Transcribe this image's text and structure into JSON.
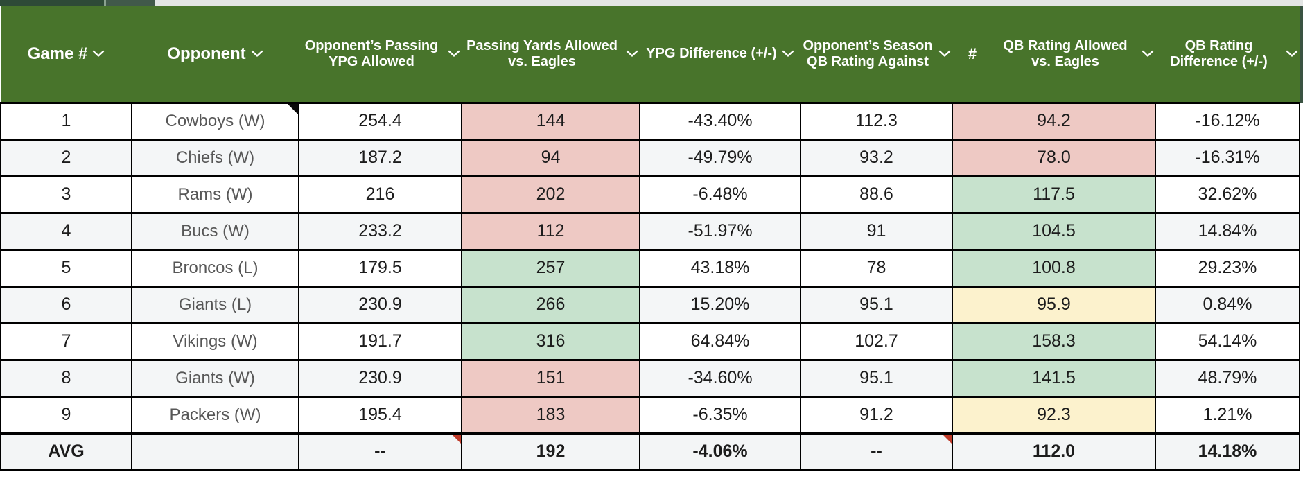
{
  "colors": {
    "header_bg": "#48742b",
    "header_text": "#ffffff",
    "edge_bar": "#3a5342",
    "strip_bg": "#e3e5e4",
    "strip_seg1": "#2e4a37",
    "strip_seg2": "#41594a",
    "strip_divider": "#8aa18f",
    "negative_cell": "#eec9c4",
    "positive_cell": "#c7e2cd",
    "neutral_cell": "#fcf2cd",
    "alt_row": "#f4f6f7",
    "avg_row": "#f3f5f6",
    "opponent_text": "#575757",
    "grid_border": "#000000",
    "flag_red": "#c03b2a",
    "flag_black": "#0a0a0a"
  },
  "columns": [
    {
      "id": "game-number",
      "label": "Game #",
      "chevron": true
    },
    {
      "id": "opponent",
      "label": "Opponent",
      "chevron": true
    },
    {
      "id": "opp-passing-ypg",
      "label": "Opponent’s Passing YPG Allowed",
      "chevron": true
    },
    {
      "id": "passing-yards-vs-eagles",
      "label": "Passing Yards Allowed vs. Eagles",
      "chevron": true
    },
    {
      "id": "ypg-difference",
      "label": "YPG Difference (+/-)",
      "chevron": true
    },
    {
      "id": "opp-season-qb-rating",
      "label": "Opponent’s Season QB Rating Against",
      "chevron": true
    },
    {
      "id": "hash",
      "label": "#",
      "chevron": false
    },
    {
      "id": "qb-rating-vs-eagles",
      "label": "QB Rating Allowed vs. Eagles",
      "chevron": true
    },
    {
      "id": "qb-rating-difference",
      "label": "QB Rating Difference (+/-)",
      "chevron": true
    }
  ],
  "rows": [
    {
      "game": "1",
      "opponent": "Cowboys (W)",
      "opponent_flag": "comment",
      "opp_passing_ypg": "254.4",
      "passing_yards": "144",
      "passing_yards_color": "neg",
      "ypg_diff": "-43.40%",
      "opp_qb_rating": "112.3",
      "qb_rating": "94.2",
      "qb_rating_color": "neg",
      "qb_rating_diff": "-16.12%"
    },
    {
      "game": "2",
      "opponent": "Chiefs (W)",
      "opp_passing_ypg": "187.2",
      "passing_yards": "94",
      "passing_yards_color": "neg",
      "ypg_diff": "-49.79%",
      "opp_qb_rating": "93.2",
      "qb_rating": "78.0",
      "qb_rating_color": "neg",
      "qb_rating_diff": "-16.31%"
    },
    {
      "game": "3",
      "opponent": "Rams (W)",
      "opp_passing_ypg": "216",
      "passing_yards": "202",
      "passing_yards_color": "neg",
      "ypg_diff": "-6.48%",
      "opp_qb_rating": "88.6",
      "qb_rating": "117.5",
      "qb_rating_color": "pos",
      "qb_rating_diff": "32.62%"
    },
    {
      "game": "4",
      "opponent": "Bucs (W)",
      "opp_passing_ypg": "233.2",
      "passing_yards": "112",
      "passing_yards_color": "neg",
      "ypg_diff": "-51.97%",
      "opp_qb_rating": "91",
      "qb_rating": "104.5",
      "qb_rating_color": "pos",
      "qb_rating_diff": "14.84%"
    },
    {
      "game": "5",
      "opponent": "Broncos (L)",
      "opp_passing_ypg": "179.5",
      "passing_yards": "257",
      "passing_yards_color": "pos",
      "ypg_diff": "43.18%",
      "opp_qb_rating": "78",
      "qb_rating": "100.8",
      "qb_rating_color": "pos",
      "qb_rating_diff": "29.23%"
    },
    {
      "game": "6",
      "opponent": "Giants (L)",
      "opp_passing_ypg": "230.9",
      "passing_yards": "266",
      "passing_yards_color": "pos",
      "ypg_diff": "15.20%",
      "opp_qb_rating": "95.1",
      "qb_rating": "95.9",
      "qb_rating_color": "mid",
      "qb_rating_diff": "0.84%"
    },
    {
      "game": "7",
      "opponent": "Vikings (W)",
      "opp_passing_ypg": "191.7",
      "passing_yards": "316",
      "passing_yards_color": "pos",
      "ypg_diff": "64.84%",
      "opp_qb_rating": "102.7",
      "qb_rating": "158.3",
      "qb_rating_color": "pos",
      "qb_rating_diff": "54.14%"
    },
    {
      "game": "8",
      "opponent": "Giants (W)",
      "opp_passing_ypg": "230.9",
      "passing_yards": "151",
      "passing_yards_color": "neg",
      "ypg_diff": "-34.60%",
      "opp_qb_rating": "95.1",
      "qb_rating": "141.5",
      "qb_rating_color": "pos",
      "qb_rating_diff": "48.79%"
    },
    {
      "game": "9",
      "opponent": "Packers (W)",
      "opp_passing_ypg": "195.4",
      "passing_yards": "183",
      "passing_yards_color": "neg",
      "ypg_diff": "-6.35%",
      "opp_qb_rating": "91.2",
      "qb_rating": "92.3",
      "qb_rating_color": "mid",
      "qb_rating_diff": "1.21%"
    }
  ],
  "avg_row": {
    "game": "AVG",
    "opponent": "",
    "opp_passing_ypg": "--",
    "opp_passing_ypg_flag": "error",
    "passing_yards": "192",
    "ypg_diff": "-4.06%",
    "opp_qb_rating": "--",
    "opp_qb_rating_flag": "error",
    "qb_rating": "112.0",
    "qb_rating_diff": "14.18%"
  }
}
